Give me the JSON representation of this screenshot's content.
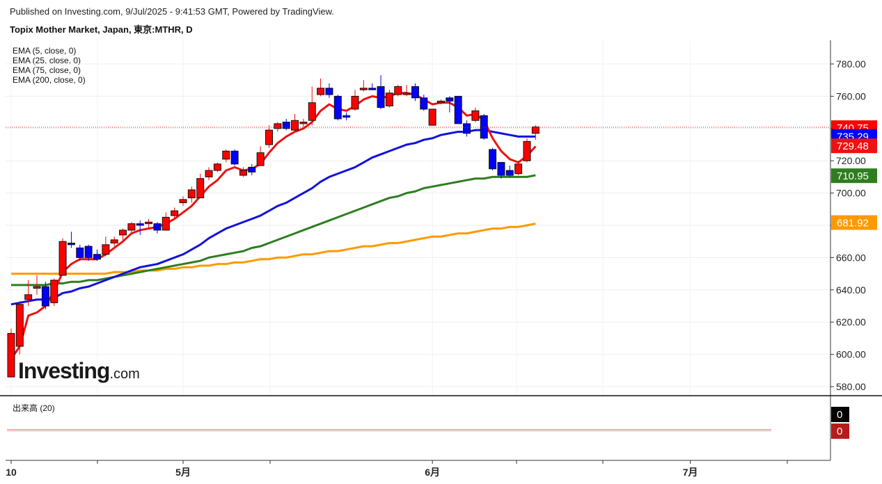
{
  "header": {
    "published": "Published on Investing.com, 9/Jul/2025 - 9:41:53 GMT, Powered by TradingView.",
    "instrument": "Topix Mother Market, Japan, 東京:MTHR, D"
  },
  "legend": [
    "EMA (5, close, 0)",
    "EMA (25, close, 0)",
    "EMA (75, close, 0)",
    "EMA (200, close, 0)"
  ],
  "volume_title": "出来高 (20)",
  "logo": {
    "brand": "Investing",
    "suffix": ".com"
  },
  "colors": {
    "up": "#ff0000",
    "down": "#0000ff",
    "ema5": "#ee1111",
    "ema25": "#1111dd",
    "ema75": "#2e7d1f",
    "ema200": "#ff9900"
  },
  "chart_data": {
    "type": "candlestick",
    "ylim": [
      570,
      790
    ],
    "y_ticks": [
      580,
      600,
      620,
      640,
      660,
      680,
      700,
      720,
      740,
      760,
      780
    ],
    "x_labels": [
      "10",
      "5月",
      "6月",
      "7月"
    ],
    "x_label_index": [
      0,
      20,
      49,
      79
    ],
    "candles": [
      {
        "o": 586,
        "h": 616,
        "l": 586,
        "c": 613
      },
      {
        "o": 605,
        "h": 633,
        "l": 600,
        "c": 631
      },
      {
        "o": 634,
        "h": 646,
        "l": 630,
        "c": 637
      },
      {
        "o": 641,
        "h": 649,
        "l": 637,
        "c": 642
      },
      {
        "o": 642,
        "h": 645,
        "l": 628,
        "c": 630
      },
      {
        "o": 632,
        "h": 647,
        "l": 630,
        "c": 646
      },
      {
        "o": 649,
        "h": 672,
        "l": 649,
        "c": 670
      },
      {
        "o": 669,
        "h": 676,
        "l": 666,
        "c": 668
      },
      {
        "o": 666,
        "h": 668,
        "l": 658,
        "c": 660
      },
      {
        "o": 667,
        "h": 668,
        "l": 658,
        "c": 660
      },
      {
        "o": 662,
        "h": 665,
        "l": 658,
        "c": 659
      },
      {
        "o": 662,
        "h": 673,
        "l": 661,
        "c": 668
      },
      {
        "o": 669,
        "h": 673,
        "l": 667,
        "c": 671
      },
      {
        "o": 674,
        "h": 678,
        "l": 670,
        "c": 677
      },
      {
        "o": 677,
        "h": 682,
        "l": 675,
        "c": 681
      },
      {
        "o": 681,
        "h": 683,
        "l": 674,
        "c": 680
      },
      {
        "o": 681,
        "h": 684,
        "l": 678,
        "c": 682
      },
      {
        "o": 681,
        "h": 682,
        "l": 675,
        "c": 677
      },
      {
        "o": 677,
        "h": 688,
        "l": 677,
        "c": 685
      },
      {
        "o": 686,
        "h": 691,
        "l": 684,
        "c": 689
      },
      {
        "o": 694,
        "h": 698,
        "l": 692,
        "c": 696
      },
      {
        "o": 697,
        "h": 704,
        "l": 694,
        "c": 702
      },
      {
        "o": 697,
        "h": 712,
        "l": 697,
        "c": 709
      },
      {
        "o": 710,
        "h": 716,
        "l": 708,
        "c": 714
      },
      {
        "o": 714,
        "h": 719,
        "l": 713,
        "c": 718
      },
      {
        "o": 721,
        "h": 727,
        "l": 719,
        "c": 726
      },
      {
        "o": 726,
        "h": 727,
        "l": 717,
        "c": 718
      },
      {
        "o": 711,
        "h": 716,
        "l": 710,
        "c": 714
      },
      {
        "o": 716,
        "h": 718,
        "l": 711,
        "c": 713
      },
      {
        "o": 717,
        "h": 729,
        "l": 717,
        "c": 725
      },
      {
        "o": 730,
        "h": 742,
        "l": 728,
        "c": 739
      },
      {
        "o": 740,
        "h": 744,
        "l": 738,
        "c": 743
      },
      {
        "o": 744,
        "h": 746,
        "l": 739,
        "c": 740
      },
      {
        "o": 739,
        "h": 749,
        "l": 738,
        "c": 745
      },
      {
        "o": 743,
        "h": 746,
        "l": 741,
        "c": 744
      },
      {
        "o": 745,
        "h": 766,
        "l": 742,
        "c": 756
      },
      {
        "o": 761,
        "h": 771,
        "l": 760,
        "c": 765
      },
      {
        "o": 765,
        "h": 768,
        "l": 759,
        "c": 761
      },
      {
        "o": 760,
        "h": 761,
        "l": 745,
        "c": 746
      },
      {
        "o": 748,
        "h": 750,
        "l": 745,
        "c": 747
      },
      {
        "o": 752,
        "h": 764,
        "l": 751,
        "c": 760
      },
      {
        "o": 764,
        "h": 770,
        "l": 763,
        "c": 765
      },
      {
        "o": 765,
        "h": 768,
        "l": 764,
        "c": 764
      },
      {
        "o": 766,
        "h": 773,
        "l": 752,
        "c": 753
      },
      {
        "o": 754,
        "h": 764,
        "l": 753,
        "c": 762
      },
      {
        "o": 761,
        "h": 767,
        "l": 760,
        "c": 766
      },
      {
        "o": 761,
        "h": 767,
        "l": 760,
        "c": 762
      },
      {
        "o": 766,
        "h": 768,
        "l": 757,
        "c": 759
      },
      {
        "o": 759,
        "h": 761,
        "l": 751,
        "c": 752
      },
      {
        "o": 742,
        "h": 752,
        "l": 742,
        "c": 752
      },
      {
        "o": 756,
        "h": 758,
        "l": 755,
        "c": 757
      },
      {
        "o": 759,
        "h": 760,
        "l": 750,
        "c": 757
      },
      {
        "o": 760,
        "h": 760,
        "l": 743,
        "c": 743
      },
      {
        "o": 743,
        "h": 745,
        "l": 735,
        "c": 737
      },
      {
        "o": 745,
        "h": 753,
        "l": 744,
        "c": 751
      },
      {
        "o": 748,
        "h": 749,
        "l": 733,
        "c": 734
      },
      {
        "o": 727,
        "h": 728,
        "l": 714,
        "c": 715
      },
      {
        "o": 719,
        "h": 719,
        "l": 709,
        "c": 711
      },
      {
        "o": 714,
        "h": 717,
        "l": 710,
        "c": 711
      },
      {
        "o": 712,
        "h": 720,
        "l": 711,
        "c": 718
      },
      {
        "o": 720,
        "h": 734,
        "l": 719,
        "c": 732
      },
      {
        "o": 737,
        "h": 742,
        "l": 733,
        "c": 741
      }
    ],
    "series": [
      {
        "name": "EMA (5, close, 0)",
        "last": 729.48,
        "values": [
          597,
          605,
          624,
          626,
          630,
          639,
          651,
          656,
          659,
          659,
          659,
          662,
          666,
          670,
          675,
          677,
          678,
          679,
          681,
          684,
          688,
          692,
          698,
          704,
          708,
          714,
          716,
          714,
          715,
          718,
          725,
          731,
          735,
          738,
          740,
          744,
          751,
          755,
          752,
          751,
          754,
          758,
          760,
          759,
          760,
          762,
          762,
          761,
          758,
          755,
          756,
          756,
          753,
          748,
          749,
          745,
          734,
          726,
          721,
          719,
          723,
          729
        ]
      },
      {
        "name": "EMA (25, close, 0)",
        "last": 735.29,
        "values": [
          631,
          632,
          633,
          634,
          634,
          635,
          638,
          639,
          641,
          642,
          644,
          646,
          648,
          650,
          652,
          654,
          655,
          656,
          658,
          660,
          662,
          665,
          668,
          672,
          675,
          678,
          680,
          682,
          684,
          686,
          689,
          692,
          694,
          697,
          700,
          703,
          707,
          710,
          712,
          714,
          716,
          719,
          722,
          724,
          726,
          728,
          730,
          731,
          733,
          734,
          736,
          737,
          738,
          738,
          739,
          739,
          738,
          737,
          736,
          735,
          735,
          735
        ]
      },
      {
        "name": "EMA (75, close, 0)",
        "last": 710.95,
        "values": [
          643,
          643,
          643,
          643,
          643,
          644,
          644,
          645,
          645,
          646,
          646,
          647,
          648,
          649,
          650,
          651,
          652,
          653,
          654,
          655,
          656,
          657,
          658,
          660,
          661,
          662,
          663,
          664,
          666,
          667,
          669,
          671,
          673,
          675,
          677,
          679,
          681,
          683,
          685,
          687,
          689,
          691,
          693,
          695,
          697,
          698,
          700,
          701,
          703,
          704,
          705,
          706,
          707,
          708,
          709,
          709,
          710,
          710,
          710,
          710,
          710,
          711
        ]
      },
      {
        "name": "EMA (200, close, 0)",
        "last": 681.92,
        "values": [
          650,
          650,
          650,
          650,
          650,
          650,
          650,
          650,
          650,
          650,
          650,
          650,
          651,
          651,
          651,
          652,
          652,
          652,
          653,
          653,
          654,
          654,
          655,
          655,
          656,
          656,
          657,
          657,
          658,
          659,
          659,
          660,
          660,
          661,
          662,
          662,
          663,
          664,
          664,
          665,
          666,
          667,
          667,
          668,
          669,
          669,
          670,
          671,
          672,
          673,
          673,
          674,
          675,
          675,
          676,
          677,
          678,
          678,
          679,
          679,
          680,
          681
        ]
      }
    ],
    "last_close": 740.75,
    "volume": {
      "title": "出来高 (20)",
      "labels": [
        "0",
        "0"
      ]
    }
  }
}
